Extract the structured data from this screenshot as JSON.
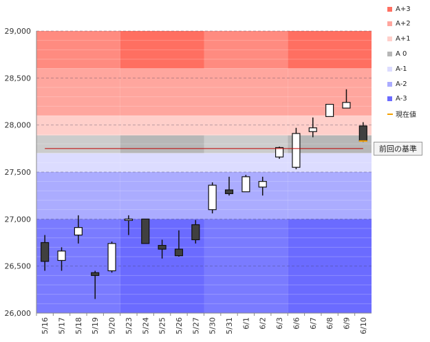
{
  "chart_data": {
    "type": "candlestick",
    "ylim": [
      26000,
      29000
    ],
    "yticks": [
      26000,
      26500,
      27000,
      27500,
      28000,
      28500,
      29000
    ],
    "ytick_labels": [
      "26,000",
      "26,500",
      "27,000",
      "27,500",
      "28,000",
      "28,500",
      "29,000"
    ],
    "categories": [
      "5/16",
      "5/17",
      "5/18",
      "5/19",
      "5/20",
      "5/23",
      "5/24",
      "5/25",
      "5/26",
      "5/27",
      "5/30",
      "5/31",
      "6/1",
      "6/2",
      "6/3",
      "6/6",
      "6/7",
      "6/8",
      "6/9",
      "6/10"
    ],
    "week_groups": [
      [
        0,
        4
      ],
      [
        5,
        9
      ],
      [
        10,
        14
      ],
      [
        15,
        19
      ]
    ],
    "candles": [
      {
        "open": 26750,
        "high": 26830,
        "low": 26450,
        "close": 26550
      },
      {
        "open": 26560,
        "high": 26700,
        "low": 26450,
        "close": 26660
      },
      {
        "open": 26830,
        "high": 27040,
        "low": 26740,
        "close": 26910
      },
      {
        "open": 26430,
        "high": 26450,
        "low": 26150,
        "close": 26400
      },
      {
        "open": 26450,
        "high": 26760,
        "low": 26430,
        "close": 26740
      },
      {
        "open": 26990,
        "high": 27040,
        "low": 26830,
        "close": 27000
      },
      {
        "open": 27000,
        "high": 27000,
        "low": 26740,
        "close": 26740
      },
      {
        "open": 26720,
        "high": 26780,
        "low": 26580,
        "close": 26680
      },
      {
        "open": 26680,
        "high": 26880,
        "low": 26600,
        "close": 26610
      },
      {
        "open": 26940,
        "high": 26990,
        "low": 26740,
        "close": 26780
      },
      {
        "open": 27100,
        "high": 27390,
        "low": 27060,
        "close": 27360
      },
      {
        "open": 27310,
        "high": 27450,
        "low": 27250,
        "close": 27270
      },
      {
        "open": 27290,
        "high": 27470,
        "low": 27290,
        "close": 27450
      },
      {
        "open": 27340,
        "high": 27450,
        "low": 27250,
        "close": 27400
      },
      {
        "open": 27660,
        "high": 27770,
        "low": 27640,
        "close": 27760
      },
      {
        "open": 27550,
        "high": 27970,
        "low": 27530,
        "close": 27910
      },
      {
        "open": 27930,
        "high": 28080,
        "low": 27870,
        "close": 27970
      },
      {
        "open": 28090,
        "high": 28220,
        "low": 28090,
        "close": 28220
      },
      {
        "open": 28180,
        "high": 28380,
        "low": 28180,
        "close": 28240
      },
      {
        "open": 27990,
        "high": 28030,
        "low": 27820,
        "close": 27830
      }
    ],
    "bands": [
      {
        "name": "A+3",
        "from": 28600,
        "to": 29000,
        "color": "#ff6f61",
        "color_alt": "#ff8b80"
      },
      {
        "name": "A+2",
        "from": 28100,
        "to": 28600,
        "color": "#ffa69e",
        "color_alt": "#ffa69e"
      },
      {
        "name": "A+1",
        "from": 27890,
        "to": 28100,
        "color": "#ffcfca",
        "color_alt": "#ffcfca"
      },
      {
        "name": "A 0",
        "from": 27700,
        "to": 27890,
        "color": "#b7b7b7",
        "color_alt": "#cccccc"
      },
      {
        "name": "A-1",
        "from": 27500,
        "to": 27700,
        "color": "#dcdcff",
        "color_alt": "#dcdcff"
      },
      {
        "name": "A-2",
        "from": 27000,
        "to": 27500,
        "color": "#abacff",
        "color_alt": "#abacff"
      },
      {
        "name": "A-3",
        "from": 26000,
        "to": 27000,
        "color": "#6b6bff",
        "color_alt": "#7a7bff"
      }
    ],
    "reference_line": {
      "value": 27750,
      "label": "前回の基準",
      "color": "#c00000"
    },
    "current_price": {
      "value": 27830,
      "color": "#f5a000"
    },
    "legend": [
      {
        "label": "A+3",
        "color": "#ff6f61",
        "kind": "swatch"
      },
      {
        "label": "A+2",
        "color": "#ffa69e",
        "kind": "swatch"
      },
      {
        "label": "A+1",
        "color": "#ffcfca",
        "kind": "swatch"
      },
      {
        "label": "A 0",
        "color": "#b7b7b7",
        "kind": "swatch"
      },
      {
        "label": "A-1",
        "color": "#dcdcff",
        "kind": "swatch"
      },
      {
        "label": "A-2",
        "color": "#abacff",
        "kind": "swatch"
      },
      {
        "label": "A-3",
        "color": "#6b6bff",
        "kind": "swatch"
      },
      {
        "label": "現在値",
        "color": "#f5a000",
        "kind": "line"
      }
    ],
    "up_color": "#ffffff",
    "down_color": "#404040"
  }
}
